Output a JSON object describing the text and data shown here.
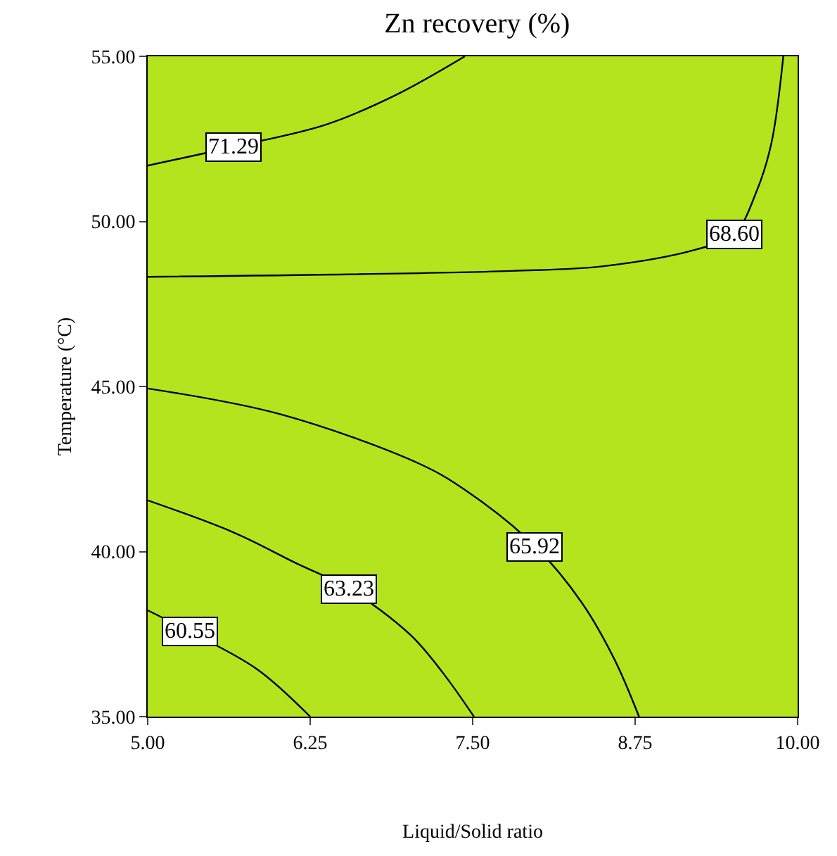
{
  "chart_data": {
    "type": "line",
    "title": "Zn recovery (%)",
    "xlabel": "Liquid/Solid ratio",
    "ylabel": "Temperature (°C)",
    "xlim": [
      5,
      10
    ],
    "xticks": [
      {
        "value": 5,
        "label": "5.00"
      },
      {
        "value": 6.25,
        "label": "6.25"
      },
      {
        "value": 7.5,
        "label": "7.50"
      },
      {
        "value": 8.75,
        "label": "8.75"
      },
      {
        "value": 10,
        "label": "10.00"
      }
    ],
    "ylim": [
      35,
      55
    ],
    "yticks": [
      {
        "value": 35,
        "label": "35.00"
      },
      {
        "value": 40,
        "label": "40.00"
      },
      {
        "value": 45,
        "label": "45.00"
      },
      {
        "value": 50,
        "label": "50.00"
      },
      {
        "value": 55,
        "label": "55.00"
      }
    ],
    "grid": false,
    "legend": false,
    "marker": "none",
    "line_style": "solid",
    "series": [
      {
        "name": "71.29",
        "color": "#000000",
        "x": [
          5.0,
          5.66,
          6.37,
          6.91,
          7.44
        ],
        "values": [
          51.69,
          52.26,
          52.93,
          53.83,
          55.0
        ]
      },
      {
        "name": "68.60",
        "color": "#000000",
        "x": [
          5.0,
          7.8,
          8.52,
          9.23,
          9.51,
          9.69,
          9.8,
          9.89
        ],
        "values": [
          48.32,
          48.5,
          48.65,
          49.16,
          49.6,
          50.97,
          52.4,
          55.0
        ]
      },
      {
        "name": "65.92",
        "color": "#000000",
        "x": [
          5.0,
          6.02,
          7.09,
          7.44,
          7.98,
          8.34,
          8.59,
          8.78
        ],
        "values": [
          44.94,
          44.16,
          42.66,
          41.87,
          40.16,
          38.45,
          36.74,
          35.0
        ]
      },
      {
        "name": "63.23",
        "color": "#000000",
        "x": [
          5.0,
          5.66,
          6.14,
          6.55,
          7.02,
          7.27,
          7.51
        ],
        "values": [
          41.55,
          40.58,
          39.65,
          38.87,
          37.48,
          36.33,
          35.0
        ]
      },
      {
        "name": "60.55",
        "color": "#000000",
        "x": [
          5.0,
          5.32,
          5.84,
          6.25
        ],
        "values": [
          38.22,
          37.58,
          36.44,
          35.0
        ]
      }
    ]
  }
}
